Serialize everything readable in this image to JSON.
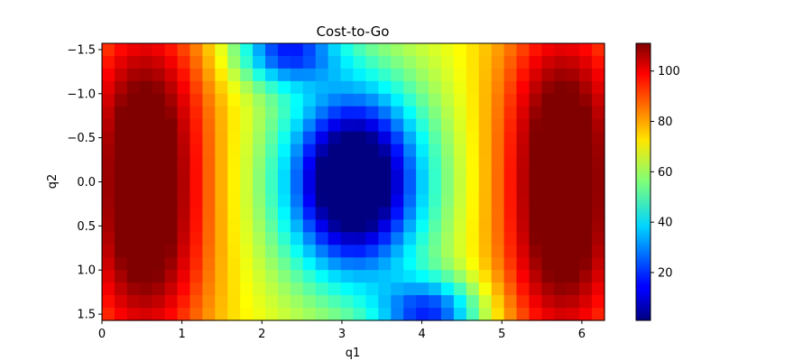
{
  "chart_data": {
    "type": "heatmap",
    "title": "Cost-to-Go",
    "xlabel": "q1",
    "ylabel": "q2",
    "colormap": "jet",
    "xlim": [
      0,
      6.283
    ],
    "ylim": [
      1.571,
      -1.571
    ],
    "y_axis_inverted": true,
    "xticks": [
      {
        "value": 0,
        "label": "0"
      },
      {
        "value": 1,
        "label": "1"
      },
      {
        "value": 2,
        "label": "2"
      },
      {
        "value": 3,
        "label": "3"
      },
      {
        "value": 4,
        "label": "4"
      },
      {
        "value": 5,
        "label": "5"
      },
      {
        "value": 6,
        "label": "6"
      }
    ],
    "yticks": [
      {
        "value": -1.5,
        "label": "−1.5"
      },
      {
        "value": -1.0,
        "label": "−1.0"
      },
      {
        "value": -0.5,
        "label": "−0.5"
      },
      {
        "value": 0.0,
        "label": "0.0"
      },
      {
        "value": 0.5,
        "label": "0.5"
      },
      {
        "value": 1.0,
        "label": "1.0"
      },
      {
        "value": 1.5,
        "label": "1.5"
      }
    ],
    "colorbar": {
      "range": [
        1,
        111
      ],
      "ticks": [
        {
          "value": 20,
          "label": "20"
        },
        {
          "value": 40,
          "label": "40"
        },
        {
          "value": 60,
          "label": "60"
        },
        {
          "value": 80,
          "label": "80"
        },
        {
          "value": 100,
          "label": "100"
        }
      ]
    },
    "grid": {
      "cols": 40,
      "rows": 22
    },
    "features": {
      "global_minimum": {
        "q1": 3.14,
        "q2": 0.0,
        "value": 1
      },
      "maxima": [
        {
          "q1": 0.6,
          "q2": -0.85,
          "value": 108
        },
        {
          "q1": 0.6,
          "q2": 0.9,
          "value": 108
        },
        {
          "q1": 5.7,
          "q2": -0.85,
          "value": 108
        },
        {
          "q1": 5.7,
          "q2": 0.9,
          "value": 108
        }
      ],
      "edge_low_regions": [
        {
          "q1": 2.3,
          "q2": -1.45,
          "value": 20
        },
        {
          "q1": 4.1,
          "q2": 1.45,
          "value": 20
        }
      ]
    }
  }
}
